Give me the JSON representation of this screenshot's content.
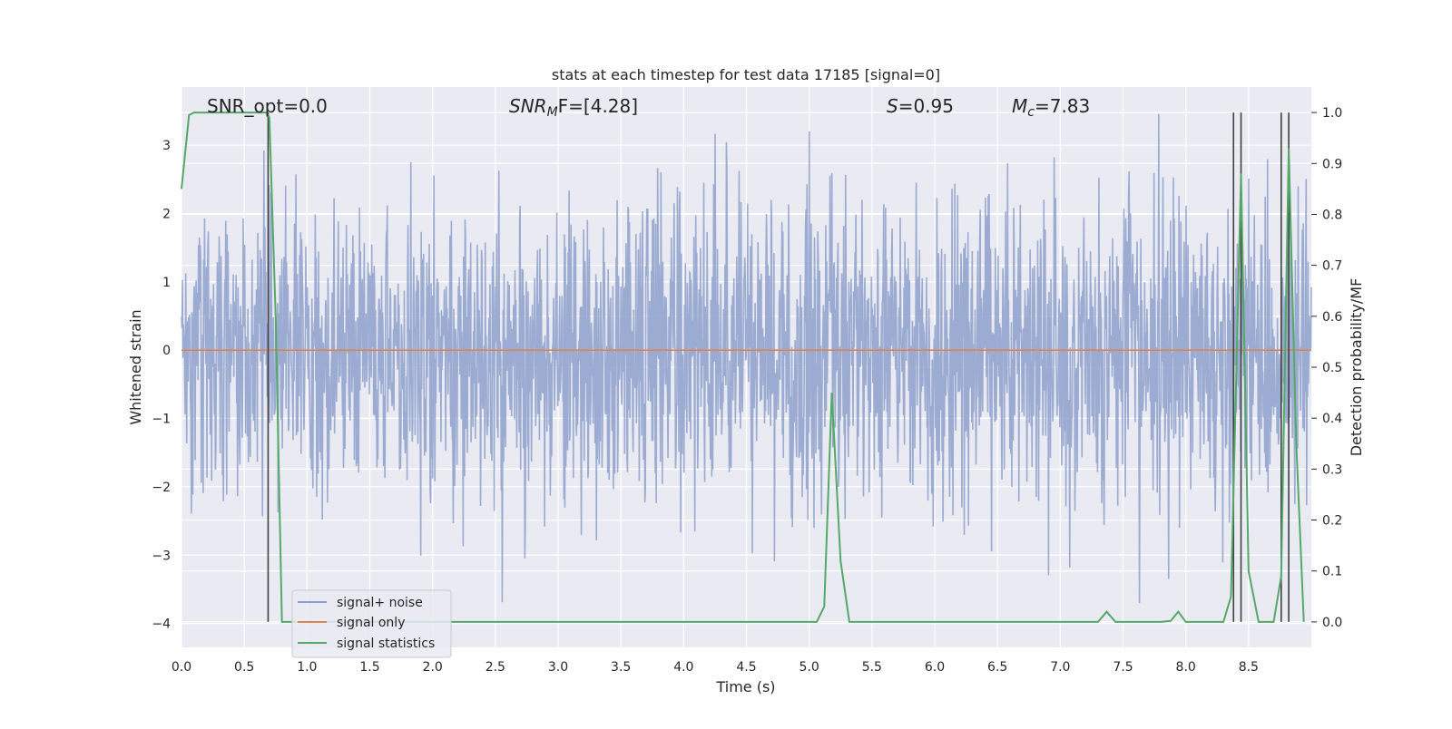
{
  "chart_data": {
    "type": "line",
    "title": "stats at each timestep for test data 17185 [signal=0]",
    "xlabel": "Time (s)",
    "ylabel_left": "Whitened strain",
    "ylabel_right": "Detection probability/MF",
    "xlim": [
      0.0,
      9.0
    ],
    "ylim_left": [
      -4.35,
      3.85
    ],
    "ylim_right": [
      -0.05,
      1.05
    ],
    "x_ticks": [
      0.0,
      0.5,
      1.0,
      1.5,
      2.0,
      2.5,
      3.0,
      3.5,
      4.0,
      4.5,
      5.0,
      5.5,
      6.0,
      6.5,
      7.0,
      7.5,
      8.0,
      8.5
    ],
    "x_tick_labels": [
      "0.0",
      "0.5",
      "1.0",
      "1.5",
      "2.0",
      "2.5",
      "3.0",
      "3.5",
      "4.0",
      "4.5",
      "5.0",
      "5.5",
      "6.0",
      "6.5",
      "7.0",
      "7.5",
      "8.0",
      "8.5"
    ],
    "y_left_ticks": [
      3,
      2,
      1,
      0,
      -1,
      -2,
      -3,
      -4
    ],
    "y_left_tick_labels": [
      "3",
      "2",
      "1",
      "0",
      "−1",
      "−2",
      "−3",
      "−4"
    ],
    "y_right_ticks": [
      1.0,
      0.9,
      0.8,
      0.7,
      0.6,
      0.5,
      0.4,
      0.3,
      0.2,
      0.1,
      0.0
    ],
    "y_right_tick_labels": [
      "1.0",
      "0.9",
      "0.8",
      "0.7",
      "0.6",
      "0.5",
      "0.4",
      "0.3",
      "0.2",
      "0.1",
      "0.0"
    ],
    "grid": true,
    "legend_position": "lower-left",
    "annotations": {
      "snr_opt": "SNR_opt=0.0",
      "snr_mf_name": "SNR",
      "snr_mf_sub": "M",
      "snr_mf_rest": "F=[4.28]",
      "s_name": "S",
      "s_rest": "=0.95",
      "mc_name": "M",
      "mc_sub": "c",
      "mc_rest": "=7.83"
    },
    "series": [
      {
        "name": "signal+ noise",
        "color": "#8da0cb",
        "axis": "left",
        "note": "dense whitened noise trace, approx amplitude 1 sigma, extremes about ±3.5",
        "x_range": [
          0.0,
          9.0
        ],
        "sample_count": 2400
      },
      {
        "name": "signal only",
        "color": "#dd8452",
        "axis": "left",
        "x": [
          0.0,
          9.0
        ],
        "y": [
          0.0,
          0.0
        ]
      },
      {
        "name": "signal statistics",
        "color": "#55a868",
        "axis": "right",
        "x": [
          0.0,
          0.06,
          0.1,
          0.2,
          0.3,
          0.4,
          0.5,
          0.6,
          0.68,
          0.7,
          0.75,
          0.8,
          0.9,
          1.0,
          2.0,
          3.0,
          4.0,
          5.0,
          5.06,
          5.12,
          5.18,
          5.25,
          5.32,
          5.4,
          6.0,
          7.0,
          7.3,
          7.37,
          7.44,
          7.5,
          7.8,
          7.88,
          7.94,
          8.0,
          8.06,
          8.15,
          8.3,
          8.36,
          8.44,
          8.5,
          8.58,
          8.7,
          8.76,
          8.82,
          8.88,
          8.94
        ],
        "y": [
          0.85,
          0.995,
          1.0,
          1.0,
          1.0,
          1.0,
          1.0,
          1.0,
          1.0,
          0.99,
          0.6,
          0.0,
          0.0,
          0.0,
          0.0,
          0.0,
          0.0,
          0.0,
          0.0,
          0.03,
          0.45,
          0.12,
          0.0,
          0.0,
          0.0,
          0.0,
          0.0,
          0.02,
          0.0,
          0.0,
          0.0,
          0.002,
          0.02,
          0.0,
          0.0,
          0.0,
          0.0,
          0.05,
          0.88,
          0.1,
          0.0,
          0.0,
          0.09,
          0.93,
          0.35,
          0.0
        ]
      }
    ],
    "vertical_markers": {
      "color": "#404040",
      "x": [
        0.69,
        8.38,
        8.44,
        8.76,
        8.82
      ],
      "y_from_right": [
        0.0,
        1.0
      ]
    }
  },
  "colors": {
    "plot_background": "#eaeaf2",
    "grid": "#ffffff",
    "page_background": "#ffffff"
  }
}
